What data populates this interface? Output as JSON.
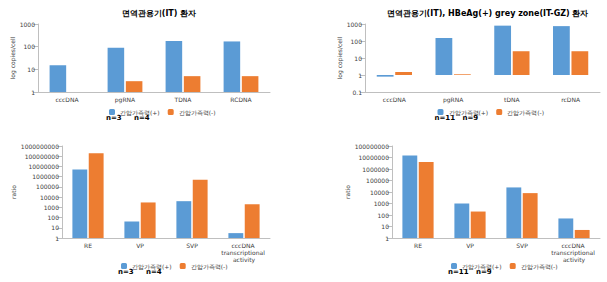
{
  "chart_data": [
    {
      "type": "bar",
      "title": "면역관용기(IT) 환자",
      "ylabel": "log copies/cell",
      "categories": [
        "cccDNA",
        "pgRNA",
        "TDNA",
        "RCDNA"
      ],
      "series": [
        {
          "name": "간암가족력(+)",
          "color": "#5B9BD5",
          "values": [
            15,
            90,
            180,
            170
          ]
        },
        {
          "name": "간암가족력(-)",
          "color": "#ED7D31",
          "values": [
            null,
            3,
            5,
            5
          ]
        }
      ],
      "ylim": [
        1,
        1000
      ],
      "yticks": [
        1,
        10,
        100,
        1000
      ],
      "log": "y",
      "grid": false,
      "legend": "bottom",
      "annotations": [
        "n=3",
        "n=4"
      ]
    },
    {
      "type": "bar",
      "title": "면역관용기(IT), HBeAg(+) grey zone(IT-GZ) 환자",
      "ylabel": "log copies/cell",
      "categories": [
        "cccDNA",
        "pgRNA",
        "tDNA",
        "rcDNA"
      ],
      "series": [
        {
          "name": "간암가족력(+)",
          "color": "#5B9BD5",
          "values": [
            0.8,
            150,
            800,
            750
          ]
        },
        {
          "name": "간암가족력(-)",
          "color": "#ED7D31",
          "values": [
            1.5,
            1.1,
            25,
            25
          ]
        }
      ],
      "ylim": [
        0.1,
        1000
      ],
      "yticks": [
        0.1,
        1,
        10,
        100,
        1000
      ],
      "log": "y",
      "grid": false,
      "legend": "bottom",
      "annotations": [
        "n=11",
        "n=9"
      ]
    },
    {
      "type": "bar",
      "ylabel": "ratio",
      "categories": [
        "RE",
        "VP",
        "SVP",
        "cccDNA transcriptional activity"
      ],
      "series": [
        {
          "name": "간암가족력(+)",
          "color": "#5B9BD5",
          "values": [
            5000000,
            40,
            4000,
            3
          ]
        },
        {
          "name": "간암가족력(-)",
          "color": "#ED7D31",
          "values": [
            200000000,
            3000,
            500000,
            2000
          ]
        }
      ],
      "ylim": [
        1,
        1000000000
      ],
      "yticks": [
        1,
        10,
        100,
        1000,
        10000,
        100000,
        1000000,
        10000000,
        100000000,
        1000000000
      ],
      "log": "y",
      "grid": false,
      "legend": "bottom",
      "annotations": [
        "n=3",
        "n=4"
      ]
    },
    {
      "type": "bar",
      "ylabel": "ratio",
      "categories": [
        "RE",
        "VP",
        "SVP",
        "cccDNA transcriptional activity"
      ],
      "series": [
        {
          "name": "간암가족력(+)",
          "color": "#5B9BD5",
          "values": [
            15000000,
            1000,
            25000,
            50
          ]
        },
        {
          "name": "간암가족력(-)",
          "color": "#ED7D31",
          "values": [
            4000000,
            200,
            8000,
            5
          ]
        }
      ],
      "ylim": [
        1,
        100000000
      ],
      "yticks": [
        1,
        10,
        100,
        1000,
        10000,
        100000,
        1000000,
        10000000,
        100000000
      ],
      "log": "y",
      "grid": false,
      "legend": "bottom",
      "annotations": [
        "n=11",
        "n=9"
      ]
    }
  ]
}
